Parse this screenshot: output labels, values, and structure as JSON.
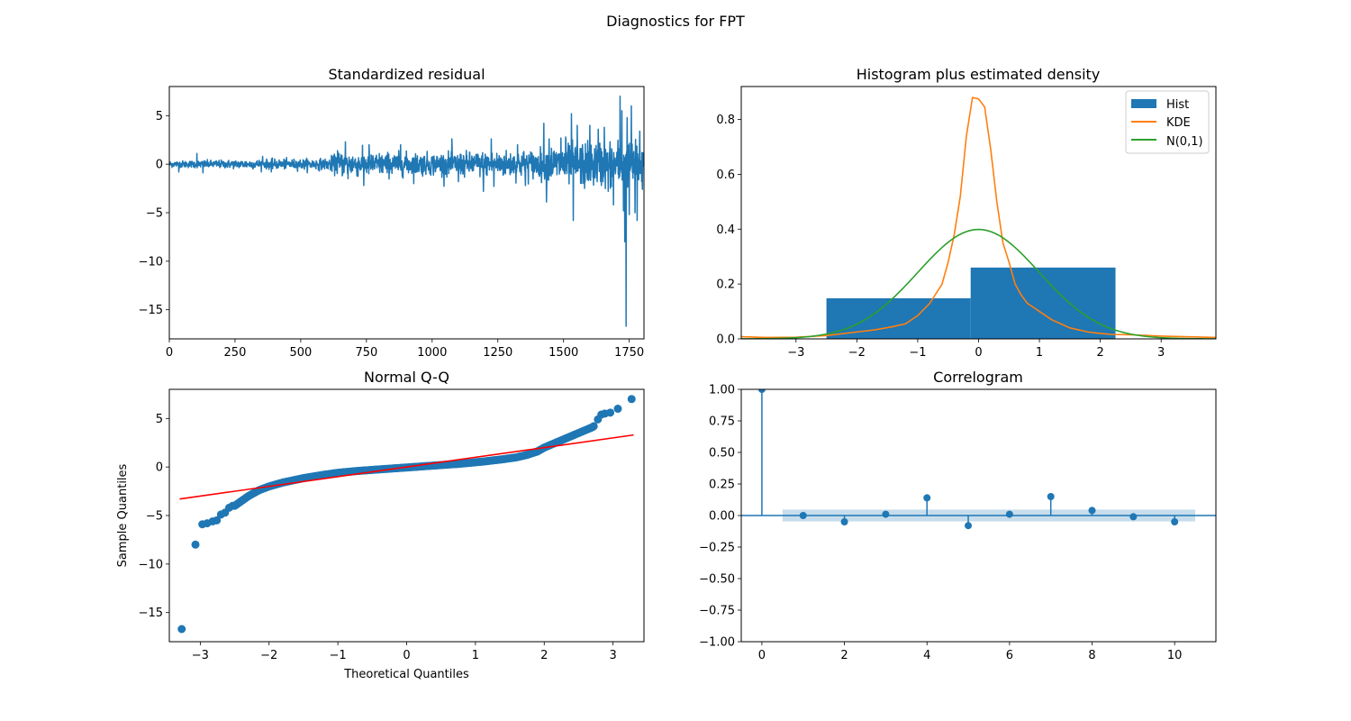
{
  "figure": {
    "suptitle": "Diagnostics for FPT"
  },
  "chart_data": [
    {
      "id": "resid",
      "type": "line",
      "title": "Standardized residual",
      "xlabel": "",
      "ylabel": "",
      "xlim": [
        0,
        1806
      ],
      "ylim": [
        -18,
        8
      ],
      "xticks": [
        0,
        250,
        500,
        750,
        1000,
        1250,
        1500,
        1750
      ],
      "yticks": [
        -15,
        -10,
        -5,
        0,
        5
      ],
      "color": "#1f77b4",
      "n_points": 1806,
      "amplitude_profile": [
        {
          "x": 0,
          "amp": 0.3
        },
        {
          "x": 600,
          "amp": 0.5
        },
        {
          "x": 650,
          "amp": 1.1
        },
        {
          "x": 1000,
          "amp": 1.0
        },
        {
          "x": 1400,
          "amp": 1.3
        },
        {
          "x": 1500,
          "amp": 1.9
        },
        {
          "x": 1700,
          "amp": 2.1
        },
        {
          "x": 1806,
          "amp": 2.0
        }
      ],
      "spikes": [
        {
          "x": 36,
          "y": -0.8
        },
        {
          "x": 105,
          "y": 1.1
        },
        {
          "x": 128,
          "y": -0.9
        },
        {
          "x": 355,
          "y": 0.8
        },
        {
          "x": 388,
          "y": -0.8
        },
        {
          "x": 640,
          "y": 1.4
        },
        {
          "x": 670,
          "y": 2.3
        },
        {
          "x": 680,
          "y": -1.5
        },
        {
          "x": 740,
          "y": -2.2
        },
        {
          "x": 760,
          "y": 2.0
        },
        {
          "x": 880,
          "y": 2.0
        },
        {
          "x": 930,
          "y": -2.0
        },
        {
          "x": 1075,
          "y": 2.6
        },
        {
          "x": 1100,
          "y": -1.8
        },
        {
          "x": 1195,
          "y": -2.8
        },
        {
          "x": 1225,
          "y": 2.6
        },
        {
          "x": 1235,
          "y": -2.3
        },
        {
          "x": 1325,
          "y": 2.0
        },
        {
          "x": 1355,
          "y": -2.2
        },
        {
          "x": 1425,
          "y": 4.2
        },
        {
          "x": 1435,
          "y": -3.9
        },
        {
          "x": 1445,
          "y": 2.6
        },
        {
          "x": 1490,
          "y": 2.7
        },
        {
          "x": 1508,
          "y": 2.8
        },
        {
          "x": 1530,
          "y": 5.2
        },
        {
          "x": 1537,
          "y": -5.8
        },
        {
          "x": 1552,
          "y": 4.0
        },
        {
          "x": 1580,
          "y": -2.5
        },
        {
          "x": 1600,
          "y": 4.0
        },
        {
          "x": 1632,
          "y": 3.6
        },
        {
          "x": 1655,
          "y": 3.8
        },
        {
          "x": 1670,
          "y": -2.8
        },
        {
          "x": 1690,
          "y": -4.2
        },
        {
          "x": 1715,
          "y": 7.0
        },
        {
          "x": 1722,
          "y": 5.5
        },
        {
          "x": 1728,
          "y": -4.8
        },
        {
          "x": 1733,
          "y": -8.0
        },
        {
          "x": 1738,
          "y": -16.7
        },
        {
          "x": 1742,
          "y": 4.8
        },
        {
          "x": 1750,
          "y": -5.2
        },
        {
          "x": 1758,
          "y": 6.0
        },
        {
          "x": 1772,
          "y": -5.0
        },
        {
          "x": 1780,
          "y": -5.8
        },
        {
          "x": 1790,
          "y": 3.4
        },
        {
          "x": 1800,
          "y": -2.6
        }
      ]
    },
    {
      "id": "hist",
      "type": "bar",
      "title": "Histogram plus estimated density",
      "xlabel": "",
      "ylabel": "",
      "xlim": [
        -3.9,
        3.9
      ],
      "ylim": [
        0,
        0.92
      ],
      "xticks": [
        -3,
        -2,
        -1,
        0,
        1,
        2,
        3
      ],
      "yticks": [
        0.0,
        0.2,
        0.4,
        0.6,
        0.8
      ],
      "legend_position": "top-right",
      "bins": [
        {
          "from": -2.5,
          "to": -0.13,
          "height": 0.148
        },
        {
          "from": -0.13,
          "to": 2.25,
          "height": 0.26
        }
      ],
      "series": [
        {
          "name": "Hist",
          "kind": "bar",
          "color": "#1f77b4"
        },
        {
          "name": "KDE",
          "kind": "line",
          "color": "#ff7f0e",
          "x": [
            -3.9,
            -3.5,
            -3.0,
            -2.5,
            -2.0,
            -1.7,
            -1.4,
            -1.2,
            -1.0,
            -0.8,
            -0.6,
            -0.5,
            -0.4,
            -0.3,
            -0.2,
            -0.1,
            0.0,
            0.1,
            0.2,
            0.3,
            0.4,
            0.5,
            0.6,
            0.7,
            0.8,
            1.0,
            1.2,
            1.5,
            1.8,
            2.0,
            2.2,
            2.5,
            3.0,
            3.9
          ],
          "y": [
            0.008,
            0.005,
            0.006,
            0.012,
            0.025,
            0.033,
            0.045,
            0.055,
            0.085,
            0.13,
            0.2,
            0.28,
            0.38,
            0.52,
            0.74,
            0.88,
            0.875,
            0.845,
            0.69,
            0.5,
            0.35,
            0.28,
            0.2,
            0.16,
            0.13,
            0.1,
            0.07,
            0.04,
            0.025,
            0.02,
            0.016,
            0.015,
            0.01,
            0.005
          ]
        },
        {
          "name": "N(0,1)",
          "kind": "line",
          "color": "#2ca02c",
          "function": "standard-normal-pdf"
        }
      ]
    },
    {
      "id": "qq",
      "type": "scatter",
      "title": "Normal Q-Q",
      "xlabel": "Theoretical Quantiles",
      "ylabel": "Sample Quantiles",
      "xlim": [
        -3.45,
        3.45
      ],
      "ylim": [
        -18,
        8
      ],
      "xticks": [
        -3,
        -2,
        -1,
        0,
        1,
        2,
        3
      ],
      "yticks": [
        -15,
        -10,
        -5,
        0,
        5
      ],
      "point_color": "#1f77b4",
      "reference_line": {
        "color": "#ff0000",
        "x": [
          -3.3,
          3.3
        ],
        "y": [
          -3.3,
          3.3
        ]
      },
      "curve": {
        "x": [
          -2.5,
          -2.3,
          -2.15,
          -2.0,
          -1.8,
          -1.5,
          -1.2,
          -1.0,
          -0.7,
          -0.4,
          -0.1,
          0.2,
          0.5,
          0.8,
          1.1,
          1.4,
          1.6,
          1.75,
          1.9,
          2.0,
          2.2,
          2.4,
          2.6,
          2.7
        ],
        "y": [
          -4.0,
          -3.0,
          -2.4,
          -2.0,
          -1.6,
          -1.15,
          -0.8,
          -0.6,
          -0.4,
          -0.25,
          -0.1,
          0.05,
          0.2,
          0.35,
          0.55,
          0.8,
          1.0,
          1.25,
          1.6,
          2.0,
          2.6,
          3.2,
          3.8,
          4.1
        ]
      },
      "tail_points": [
        {
          "x": -3.27,
          "y": -16.7
        },
        {
          "x": -3.07,
          "y": -8.0
        },
        {
          "x": -2.97,
          "y": -5.9
        },
        {
          "x": -2.9,
          "y": -5.8
        },
        {
          "x": -2.82,
          "y": -5.6
        },
        {
          "x": -2.76,
          "y": -5.5
        },
        {
          "x": -2.7,
          "y": -4.9
        },
        {
          "x": -2.64,
          "y": -4.7
        },
        {
          "x": -2.58,
          "y": -4.2
        },
        {
          "x": -2.53,
          "y": -4.0
        },
        {
          "x": 2.72,
          "y": 4.2
        },
        {
          "x": 2.78,
          "y": 4.9
        },
        {
          "x": 2.83,
          "y": 5.4
        },
        {
          "x": 2.88,
          "y": 5.5
        },
        {
          "x": 2.96,
          "y": 5.6
        },
        {
          "x": 3.07,
          "y": 6.0
        },
        {
          "x": 3.27,
          "y": 7.0
        }
      ]
    },
    {
      "id": "acf",
      "type": "scatter",
      "title": "Correlogram",
      "xlabel": "",
      "ylabel": "",
      "xlim": [
        -0.5,
        11
      ],
      "ylim": [
        -1.0,
        1.0
      ],
      "xticks": [
        0,
        2,
        4,
        6,
        8,
        10
      ],
      "yticks": [
        -1.0,
        -0.75,
        -0.5,
        -0.25,
        0.0,
        0.25,
        0.5,
        0.75,
        1.0
      ],
      "color": "#1f77b4",
      "confidence_band": {
        "from_lag": 0.5,
        "to_lag": 10.5,
        "upper": 0.047,
        "lower": -0.047
      },
      "lags": [
        0,
        1,
        2,
        3,
        4,
        5,
        6,
        7,
        8,
        9,
        10
      ],
      "values": [
        1.0,
        0.0,
        -0.05,
        0.01,
        0.14,
        -0.08,
        0.01,
        0.15,
        0.04,
        -0.01,
        -0.05
      ]
    }
  ]
}
